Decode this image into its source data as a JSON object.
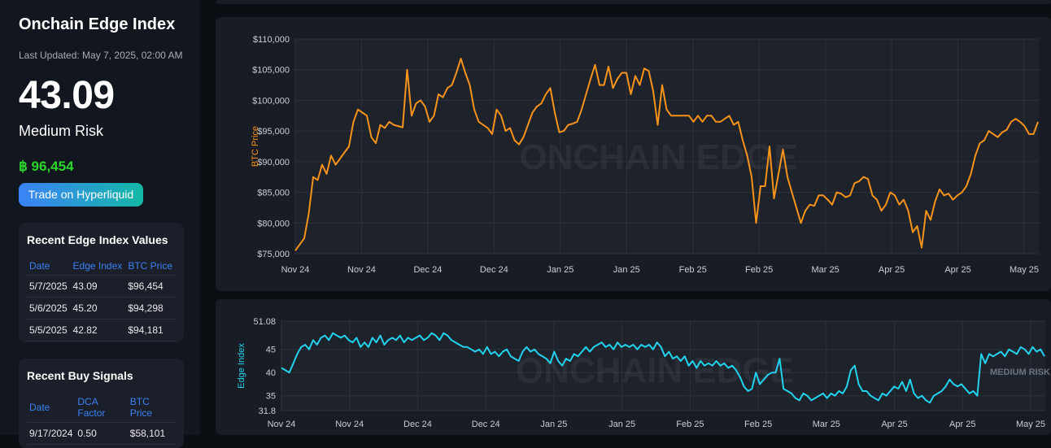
{
  "sidebar": {
    "title": "Onchain Edge Index",
    "last_updated": "Last Updated: May 7, 2025, 02:00 AM",
    "index_value": "43.09",
    "risk_label": "Medium Risk",
    "btc_price": "฿ 96,454",
    "trade_button": "Trade on Hyperliquid",
    "recent_values": {
      "title": "Recent Edge Index Values",
      "headers": [
        "Date",
        "Edge Index",
        "BTC Price"
      ],
      "rows": [
        [
          "5/7/2025",
          "43.09",
          "$96,454"
        ],
        [
          "5/6/2025",
          "45.20",
          "$94,298"
        ],
        [
          "5/5/2025",
          "42.82",
          "$94,181"
        ]
      ]
    },
    "buy_signals": {
      "title": "Recent Buy Signals",
      "headers": [
        "Date",
        "DCA Factor",
        "BTC Price"
      ],
      "rows": [
        [
          "9/17/2024",
          "0.50",
          "$58,101"
        ]
      ]
    }
  },
  "colors": {
    "accent_blue": "#3b82f6",
    "price_green": "#2bd62b",
    "btc_line": "#f7931a",
    "edge_line": "#22d3ee"
  },
  "chart_data": [
    {
      "type": "line",
      "ylabel": "BTC Price",
      "watermark": "ONCHAIN EDGE",
      "x_ticks": [
        "Nov 24",
        "Nov 24",
        "Dec 24",
        "Dec 24",
        "Jan 25",
        "Jan 25",
        "Feb 25",
        "Feb 25",
        "Mar 25",
        "Apr 25",
        "Apr 25",
        "May 25"
      ],
      "y_ticks": [
        "$75,000",
        "$80,000",
        "$85,000",
        "$90,000",
        "$95,000",
        "$100,000",
        "$105,000",
        "$110,000"
      ],
      "ylim": [
        75000,
        110000
      ],
      "grid": true,
      "series": [
        {
          "values": [
            75500,
            76500,
            77500,
            81500,
            87500,
            87000,
            89500,
            88000,
            91000,
            89500,
            90500,
            91500,
            92500,
            96500,
            98500,
            98000,
            97500,
            94000,
            93000,
            96000,
            95500,
            96500,
            96000,
            95800,
            95600,
            105000,
            97500,
            99500,
            100000,
            99000,
            96500,
            97500,
            101000,
            100500,
            102000,
            102500,
            104500,
            106800,
            104500,
            102500,
            98500,
            96500,
            96000,
            95500,
            94500,
            98500,
            97500,
            95000,
            95500,
            93500,
            92800,
            94000,
            96000,
            98000,
            99000,
            99500,
            101000,
            102000,
            98000,
            94800,
            95000,
            96000,
            96200,
            96500,
            98500,
            101000,
            103500,
            105800,
            102500,
            102500,
            105500,
            102000,
            103500,
            104500,
            104500,
            101000,
            104000,
            102500,
            105200,
            104800,
            101500,
            96000,
            102500,
            98500,
            97500,
            97500,
            97500,
            97500,
            97500,
            96500,
            97500,
            96500,
            97500,
            97500,
            96500,
            96500,
            97000,
            97500,
            96000,
            96500,
            93500,
            91000,
            87500,
            80000,
            86000,
            86000,
            92500,
            84000,
            88000,
            92000,
            87500,
            85000,
            82500,
            80000,
            82000,
            83000,
            82800,
            84500,
            84500,
            83800,
            83000,
            85000,
            84800,
            84200,
            84500,
            86500,
            86800,
            87500,
            87200,
            84500,
            83800,
            82000,
            83000,
            85000,
            84500,
            83000,
            83800,
            82000,
            78500,
            79500,
            76000,
            82000,
            80500,
            83500,
            85500,
            84500,
            84800,
            83800,
            84500,
            85000,
            86000,
            88000,
            91000,
            93000,
            93500,
            95000,
            94500,
            94000,
            94800,
            95200,
            96500,
            97000,
            96500,
            95800,
            94500,
            94500,
            96500
          ]
        }
      ]
    },
    {
      "type": "line",
      "ylabel": "Edge Index",
      "watermark": "ONCHAIN EDGE",
      "annotation": "MEDIUM RISK",
      "x_ticks": [
        "Nov 24",
        "Nov 24",
        "Dec 24",
        "Dec 24",
        "Jan 25",
        "Jan 25",
        "Feb 25",
        "Feb 25",
        "Mar 25",
        "Apr 25",
        "Apr 25",
        "May 25"
      ],
      "y_ticks": [
        "31.8",
        "35",
        "40",
        "45",
        "51.08"
      ],
      "ylim": [
        31.8,
        51.08
      ],
      "grid": true,
      "series": [
        {
          "values": [
            41,
            40.5,
            40,
            42,
            44,
            45.5,
            46,
            45,
            47,
            46,
            47.5,
            48,
            47,
            48.5,
            48,
            47.5,
            48,
            47,
            46.5,
            47.5,
            45.5,
            46.5,
            45.5,
            47.5,
            46.5,
            48,
            46,
            47,
            47.5,
            47,
            48,
            46.5,
            47.5,
            47,
            47.5,
            48,
            47,
            47.5,
            48.5,
            48,
            47,
            48.5,
            48,
            47,
            46.5,
            46,
            45.5,
            45.5,
            45,
            44.5,
            45,
            44,
            45.5,
            44,
            44.5,
            43.5,
            44.5,
            45,
            43.5,
            43,
            42.5,
            44.5,
            45.5,
            44.5,
            45,
            44,
            43.5,
            43,
            42,
            44.5,
            42.5,
            41.5,
            43,
            42.5,
            44,
            43.5,
            44.5,
            45.5,
            44.5,
            45.5,
            46,
            46.5,
            45.5,
            46,
            45,
            46.5,
            45.5,
            46,
            45.5,
            46,
            45,
            46,
            45.5,
            46,
            45,
            46.5,
            45.5,
            43.5,
            44.5,
            43,
            43.5,
            42.5,
            43.5,
            41.5,
            42.5,
            41,
            42.5,
            41.5,
            42,
            41.5,
            42.5,
            41.5,
            42,
            41,
            41.5,
            40.5,
            39,
            37,
            36,
            36.5,
            40,
            37.5,
            38.5,
            39.5,
            40,
            40,
            43,
            36.5,
            36,
            35.5,
            34.5,
            34,
            35.5,
            35,
            34,
            34.5,
            35,
            35.5,
            34.5,
            35.5,
            35,
            36,
            35.5,
            37,
            40.5,
            41.5,
            37.5,
            36,
            36,
            35,
            34.5,
            34,
            35.5,
            35,
            36,
            37,
            36.5,
            38,
            36,
            38.5,
            35.5,
            34.5,
            35,
            34,
            33.5,
            35,
            35.5,
            36,
            37,
            38.5,
            37.5,
            37,
            37.5,
            36.5,
            35.5,
            36,
            35,
            44,
            42,
            44,
            43.5,
            44,
            44.5,
            43.5,
            45,
            44.5,
            44,
            45.5,
            45,
            44,
            45.5,
            44.5,
            45,
            43.5
          ]
        }
      ]
    }
  ]
}
